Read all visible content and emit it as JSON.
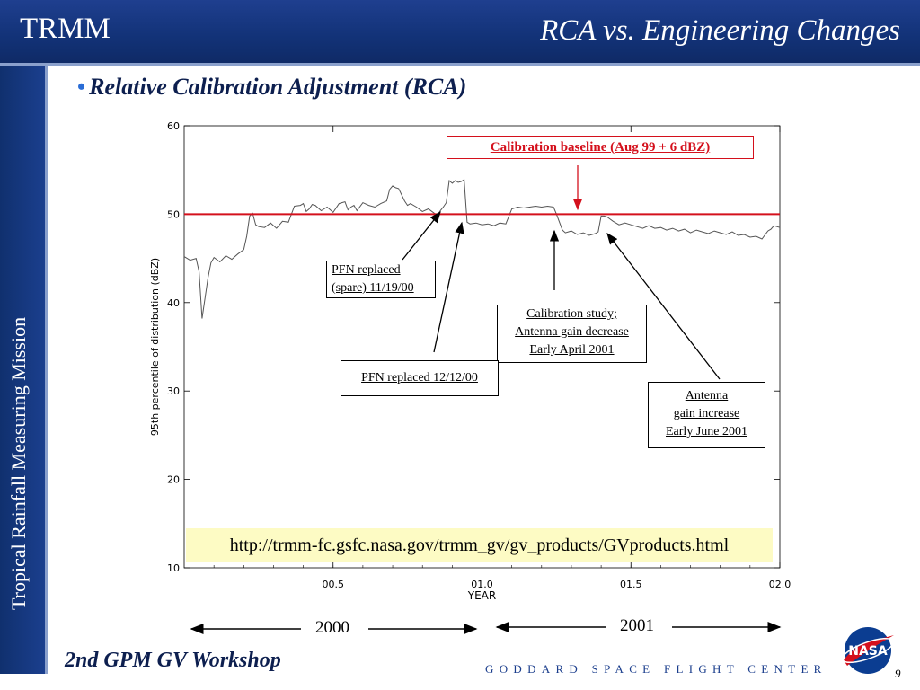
{
  "header": {
    "brand": "TRMM",
    "title": "RCA vs. Engineering Changes"
  },
  "sidebar": {
    "text": "Tropical Rainfall Measuring Mission"
  },
  "bullet": {
    "text": "Relative Calibration Adjustment (RCA)"
  },
  "chart_data": {
    "type": "line",
    "title": "",
    "xlabel": "YEAR",
    "ylabel": "95th percentile of distribution (dBZ)",
    "xlim": [
      0.0,
      2.0
    ],
    "ylim": [
      10,
      60
    ],
    "xticks": [
      0.5,
      1.0,
      1.5,
      2.0
    ],
    "xtick_labels": [
      "00.5",
      "01.0",
      "01.5",
      "02.0"
    ],
    "yticks": [
      10,
      20,
      30,
      40,
      50,
      60
    ],
    "ytick_labels": [
      "10",
      "20",
      "30",
      "40",
      "50",
      "60"
    ],
    "baseline": {
      "y": 50,
      "color": "#d4101c"
    },
    "series_color": "#555555",
    "series": [
      {
        "x": [
          0.0,
          0.02,
          0.04,
          0.05,
          0.06,
          0.07,
          0.08,
          0.09,
          0.1,
          0.12,
          0.14,
          0.16,
          0.18,
          0.2,
          0.21,
          0.22,
          0.23,
          0.24,
          0.25,
          0.27,
          0.29,
          0.31,
          0.33,
          0.35,
          0.37,
          0.39,
          0.4,
          0.41,
          0.42,
          0.43,
          0.44,
          0.46,
          0.48,
          0.5,
          0.52,
          0.54,
          0.55,
          0.56,
          0.57,
          0.58,
          0.6,
          0.62,
          0.64,
          0.66,
          0.68,
          0.69,
          0.7,
          0.71,
          0.72,
          0.74,
          0.75,
          0.76,
          0.78,
          0.8,
          0.82,
          0.84,
          0.85,
          0.86,
          0.87,
          0.88,
          0.89,
          0.9,
          0.91,
          0.92,
          0.93,
          0.94,
          0.95,
          0.96,
          0.98,
          1.0,
          1.02,
          1.04,
          1.06,
          1.08,
          1.1,
          1.12,
          1.14,
          1.16,
          1.18,
          1.2,
          1.22,
          1.24,
          1.25,
          1.26,
          1.27,
          1.28,
          1.3,
          1.32,
          1.34,
          1.36,
          1.38,
          1.39,
          1.4,
          1.41,
          1.42,
          1.44,
          1.46,
          1.48,
          1.5,
          1.52,
          1.54,
          1.56,
          1.58,
          1.6,
          1.62,
          1.64,
          1.66,
          1.68,
          1.7,
          1.72,
          1.74,
          1.76,
          1.78,
          1.8,
          1.82,
          1.84,
          1.86,
          1.88,
          1.9,
          1.92,
          1.94,
          1.96,
          1.97,
          1.98,
          2.0
        ],
        "y": [
          45.2,
          44.8,
          45.0,
          43.5,
          38.2,
          40.5,
          42.8,
          44.5,
          45.1,
          44.6,
          45.3,
          44.9,
          45.5,
          46.0,
          47.5,
          49.8,
          50.1,
          48.8,
          48.6,
          48.5,
          49.0,
          48.4,
          49.2,
          49.1,
          50.9,
          51.0,
          51.2,
          50.3,
          50.6,
          51.1,
          51.0,
          50.4,
          50.8,
          50.2,
          51.2,
          51.4,
          50.5,
          50.8,
          51.0,
          50.4,
          51.3,
          51.0,
          50.8,
          51.2,
          51.5,
          52.8,
          53.2,
          53.0,
          52.9,
          51.5,
          51.0,
          51.2,
          50.8,
          50.3,
          50.6,
          50.1,
          49.9,
          50.4,
          50.8,
          51.3,
          53.8,
          53.5,
          53.8,
          53.6,
          53.7,
          53.9,
          49.1,
          48.9,
          49.0,
          48.8,
          48.9,
          48.7,
          49.0,
          48.9,
          50.6,
          50.8,
          50.7,
          50.8,
          50.9,
          50.8,
          50.9,
          50.8,
          50.0,
          49.1,
          48.2,
          47.9,
          48.1,
          47.7,
          47.9,
          47.6,
          47.8,
          48.0,
          49.8,
          49.8,
          49.7,
          49.2,
          48.8,
          49.0,
          48.8,
          48.6,
          48.4,
          48.7,
          48.4,
          48.5,
          48.2,
          48.4,
          48.1,
          48.3,
          47.9,
          48.2,
          48.0,
          47.8,
          48.1,
          47.9,
          47.7,
          48.0,
          47.6,
          47.7,
          47.4,
          47.5,
          47.2,
          48.1,
          48.3,
          48.7,
          48.5
        ]
      }
    ]
  },
  "callouts": {
    "baseline": "Calibration baseline (Aug 99 + 6 dBZ)",
    "pfn_spare_line1": "PFN replaced",
    "pfn_spare_line2": "(spare) 11/19/00",
    "study_line1": "Calibration study;",
    "study_line2": "Antenna gain decrease",
    "study_line3": "Early April 2001",
    "pfn_1212": "PFN replaced 12/12/00",
    "antenna_line1": "Antenna",
    "antenna_line2": "gain increase",
    "antenna_line3": "Early June 2001"
  },
  "url": "http://trmm-fc.gsfc.nasa.gov/trmm_gv/gv_products/GVproducts.html",
  "years": {
    "left": "2000",
    "right": "2001"
  },
  "footer": {
    "workshop": "2nd GPM GV Workshop",
    "center": "GODDARD SPACE FLIGHT CENTER",
    "page": "9",
    "logo_text": "NASA"
  }
}
